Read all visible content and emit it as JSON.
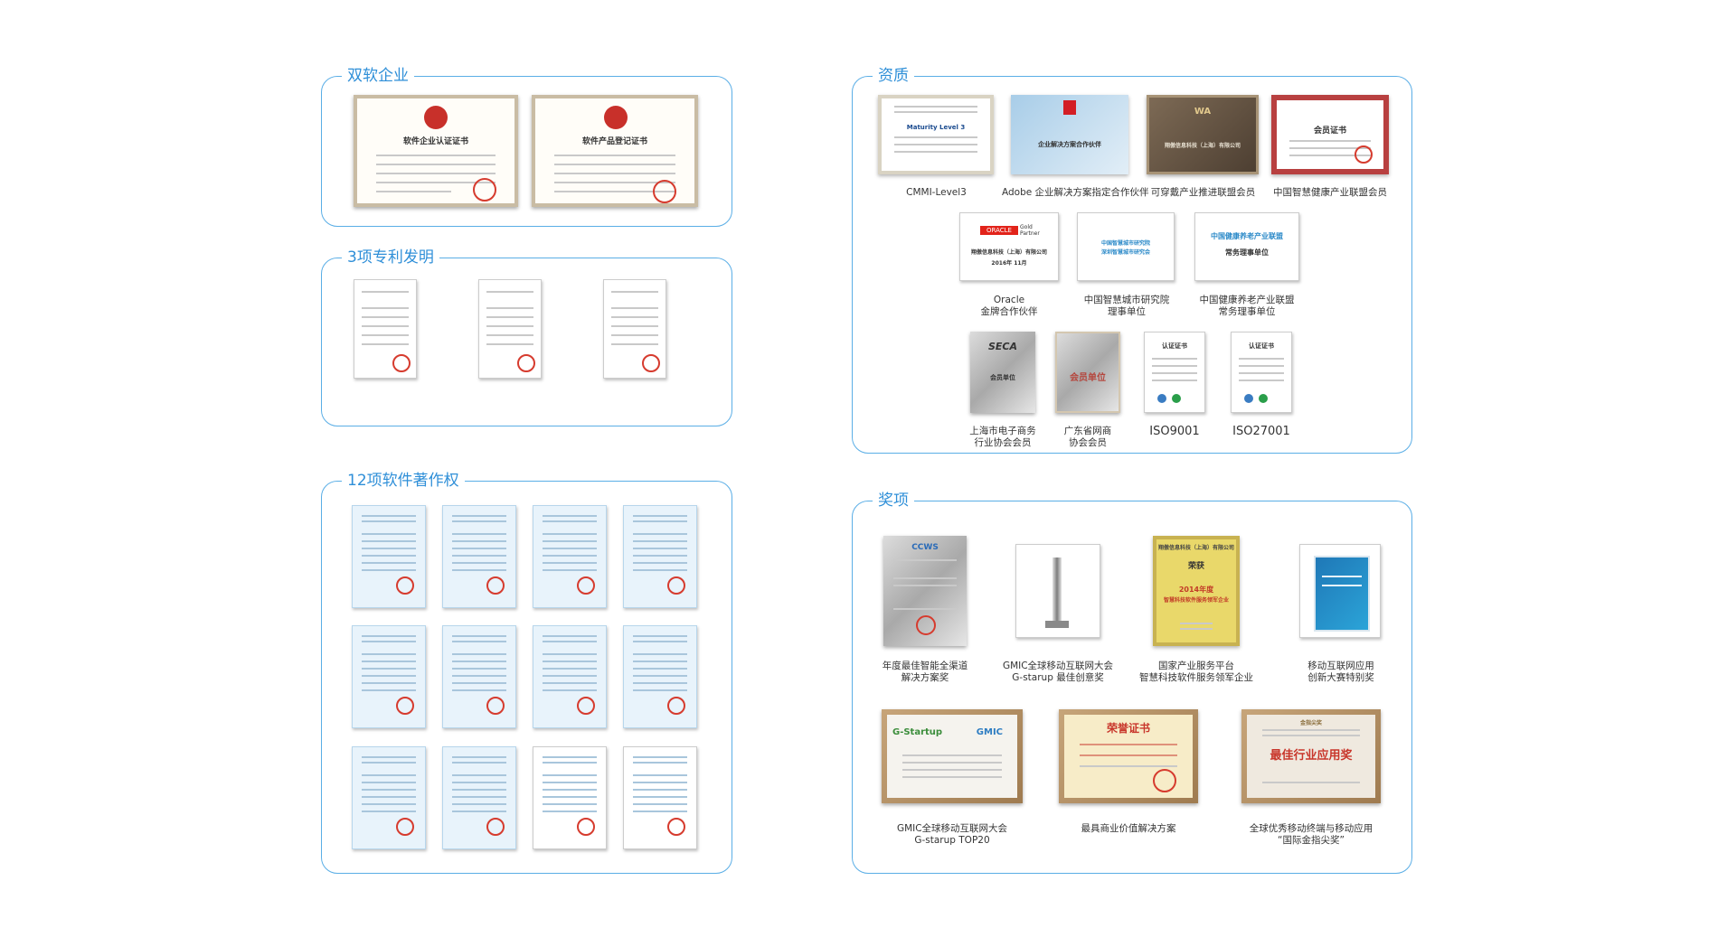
{
  "sections": {
    "shuangruan": {
      "title": "双软企业"
    },
    "patents": {
      "title": "3项专利发明"
    },
    "copyright": {
      "title": "12项软件著作权"
    },
    "qualifications": {
      "title": "资质"
    },
    "awards": {
      "title": "奖项"
    }
  },
  "shuangruan_certs": [
    {
      "heading": "软件企业认证证书"
    },
    {
      "heading": "软件产品登记证书"
    }
  ],
  "qualifications": {
    "row1": [
      {
        "caption": "CMMI-Level3",
        "text": "Maturity Level 3"
      },
      {
        "caption": "Adobe 企业解决方案指定合作伙伴",
        "text": "企业解决方案合作伙伴"
      },
      {
        "caption": "可穿戴产业推进联盟会员",
        "text": "翔傲信息科技（上海）有限公司"
      },
      {
        "caption": "中国智慧健康产业联盟会员",
        "text": "会员证书"
      }
    ],
    "row2": [
      {
        "caption1": "Oracle",
        "caption2": "金牌合作伙伴",
        "logo": "ORACLE",
        "logo2": "Gold Partner",
        "text": "翔傲信息科技（上海）有限公司",
        "date": "2016年 11月"
      },
      {
        "caption1": "中国智慧城市研究院",
        "caption2": "理事单位",
        "text1": "中国智慧城市研究院",
        "text2": "深圳智慧城市研究会"
      },
      {
        "caption1": "中国健康养老产业联盟",
        "caption2": "常务理事单位",
        "heading": "中国健康养老产业联盟",
        "text": "常务理事单位"
      }
    ],
    "row3": [
      {
        "caption1": "上海市电子商务",
        "caption2": "行业协会会员",
        "logo": "SECA",
        "text": "会员单位"
      },
      {
        "caption1": "广东省网商",
        "caption2": "协会会员",
        "text": "会员单位"
      },
      {
        "caption1": "ISO9001",
        "caption2": "",
        "text": "认证证书"
      },
      {
        "caption1": "ISO27001",
        "caption2": "",
        "text": "认证证书"
      }
    ]
  },
  "awards": {
    "row1": [
      {
        "caption1": "年度最佳智能全渠道",
        "caption2": "解决方案奖",
        "logo": "CCWS"
      },
      {
        "caption1": "GMIC全球移动互联网大会",
        "caption2": "G-starup 最佳创意奖"
      },
      {
        "caption1": "国家产业服务平台",
        "caption2": "智慧科技软件服务领军企业",
        "org": "翔傲信息科技（上海）有限公司",
        "heading": "荣获",
        "year": "2014年度",
        "text": "智慧科技软件服务领军企业"
      },
      {
        "caption1": "移动互联网应用",
        "caption2": "创新大赛特别奖"
      }
    ],
    "row2": [
      {
        "caption1": "GMIC全球移动互联网大会",
        "caption2": "G-starup TOP20",
        "logo1": "G-Startup",
        "logo2": "GMIC"
      },
      {
        "caption1": "最具商业价值解决方案",
        "caption2": "",
        "heading": "荣誉证书"
      },
      {
        "caption1": "全球优秀移动终端与移动应用",
        "caption2": "“国际金指尖奖”",
        "heading": "最佳行业应用奖",
        "sub": "金指尖奖"
      }
    ]
  }
}
